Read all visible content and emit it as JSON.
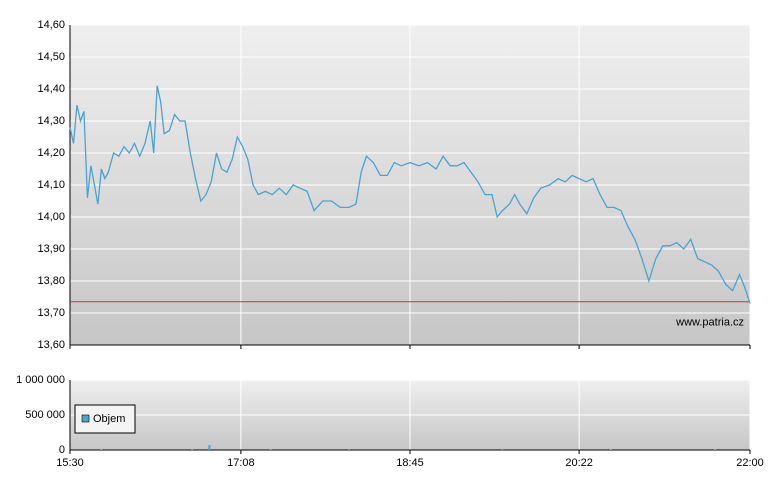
{
  "chart_data": [
    {
      "type": "line",
      "x": [
        930,
        932,
        934,
        936,
        938,
        940,
        942,
        944,
        946,
        948,
        950,
        952,
        955,
        958,
        961,
        964,
        967,
        970,
        973,
        976,
        978,
        980,
        982,
        984,
        987,
        990,
        993,
        996,
        999,
        1002,
        1005,
        1008,
        1011,
        1014,
        1017,
        1020,
        1023,
        1026,
        1029,
        1032,
        1035,
        1038,
        1042,
        1046,
        1050,
        1054,
        1058,
        1062,
        1066,
        1070,
        1075,
        1080,
        1085,
        1090,
        1094,
        1097,
        1100,
        1104,
        1108,
        1112,
        1116,
        1120,
        1125,
        1130,
        1135,
        1140,
        1144,
        1148,
        1152,
        1156,
        1160,
        1164,
        1168,
        1172,
        1175,
        1178,
        1182,
        1185,
        1188,
        1192,
        1196,
        1200,
        1205,
        1210,
        1214,
        1218,
        1222,
        1226,
        1230,
        1234,
        1238,
        1242,
        1246,
        1250,
        1254,
        1258,
        1262,
        1266,
        1270,
        1274,
        1278,
        1282,
        1286,
        1290,
        1294,
        1298,
        1302,
        1306,
        1310,
        1314,
        1317,
        1320
      ],
      "series": [
        {
          "color": "#4aa3d0",
          "values": [
            14.28,
            14.23,
            14.35,
            14.3,
            14.33,
            14.06,
            14.16,
            14.1,
            14.04,
            14.15,
            14.12,
            14.14,
            14.2,
            14.19,
            14.22,
            14.2,
            14.23,
            14.19,
            14.23,
            14.3,
            14.2,
            14.41,
            14.36,
            14.26,
            14.27,
            14.32,
            14.3,
            14.3,
            14.2,
            14.12,
            14.05,
            14.07,
            14.11,
            14.2,
            14.15,
            14.14,
            14.18,
            14.25,
            14.22,
            14.18,
            14.1,
            14.07,
            14.08,
            14.07,
            14.09,
            14.07,
            14.1,
            14.09,
            14.08,
            14.02,
            14.05,
            14.05,
            14.03,
            14.03,
            14.04,
            14.14,
            14.19,
            14.17,
            14.13,
            14.13,
            14.17,
            14.16,
            14.17,
            14.16,
            14.17,
            14.15,
            14.19,
            14.16,
            14.16,
            14.17,
            14.14,
            14.11,
            14.07,
            14.07,
            14.0,
            14.02,
            14.04,
            14.07,
            14.04,
            14.01,
            14.06,
            14.09,
            14.1,
            14.12,
            14.11,
            14.13,
            14.12,
            14.11,
            14.12,
            14.07,
            14.03,
            14.03,
            14.02,
            13.97,
            13.93,
            13.87,
            13.8,
            13.87,
            13.91,
            13.91,
            13.92,
            13.9,
            13.93,
            13.87,
            13.86,
            13.85,
            13.83,
            13.79,
            13.77,
            13.82,
            13.78,
            13.73
          ]
        }
      ],
      "reference_line": 13.735,
      "reference_color": "#cc3333",
      "xlim": [
        930,
        1320
      ],
      "xticks": [
        930,
        1028,
        1125,
        1222,
        1320
      ],
      "ylim": [
        13.6,
        14.6
      ],
      "yticks": [
        {
          "value": 13.6,
          "label": "13,60"
        },
        {
          "value": 13.7,
          "label": "13,70"
        },
        {
          "value": 13.8,
          "label": "13,80"
        },
        {
          "value": 13.9,
          "label": "13,90"
        },
        {
          "value": 14.0,
          "label": "14,00"
        },
        {
          "value": 14.1,
          "label": "14,10"
        },
        {
          "value": 14.2,
          "label": "14,20"
        },
        {
          "value": 14.3,
          "label": "14,30"
        },
        {
          "value": 14.4,
          "label": "14,40"
        },
        {
          "value": 14.5,
          "label": "14,50"
        },
        {
          "value": 14.6,
          "label": "14,60"
        }
      ],
      "grid": true,
      "annotation": "www.patria.cz"
    },
    {
      "type": "bar",
      "x": [
        948,
        1000,
        1010,
        1045,
        1090,
        1178,
        1240,
        1300
      ],
      "series": [
        {
          "name": "Objem",
          "color": "#4aa3d0",
          "values": [
            8000,
            6000,
            70000,
            9000,
            5000,
            12000,
            7000,
            6000
          ]
        }
      ],
      "xlim": [
        930,
        1320
      ],
      "xticks": [
        {
          "value": 930,
          "label": "15:30"
        },
        {
          "value": 1028,
          "label": "17:08"
        },
        {
          "value": 1125,
          "label": "18:45"
        },
        {
          "value": 1222,
          "label": "20:22"
        },
        {
          "value": 1320,
          "label": "22:00"
        }
      ],
      "ylim": [
        0,
        1000000
      ],
      "yticks": [
        0,
        {
          "value": 500000,
          "label": "500 000"
        },
        {
          "value": 1000000,
          "label": "1 000 000"
        }
      ],
      "grid": true,
      "legend": "top-left"
    }
  ]
}
